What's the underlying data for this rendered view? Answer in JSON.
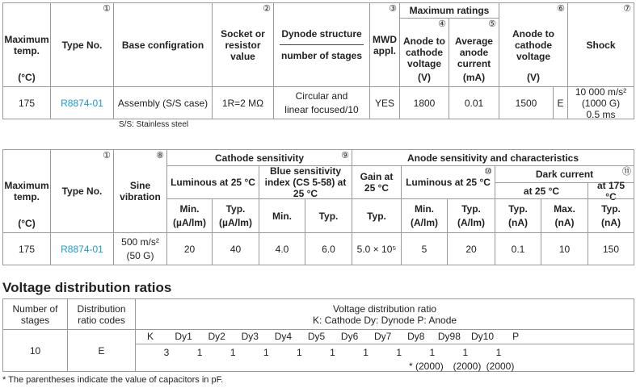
{
  "table1": {
    "max_temp": {
      "label": "Maximum temp.",
      "unit": "(°C)"
    },
    "type_no": {
      "label": "Type No.",
      "note": "①"
    },
    "base": {
      "label": "Base configration"
    },
    "socket": {
      "label": "Socket or resistor value",
      "note": "②"
    },
    "dynode": {
      "label": "Dynode structure",
      "sublabel": "number of stages"
    },
    "mwd": {
      "label": "MWD appl.",
      "note": "③"
    },
    "max_ratings": "Maximum ratings",
    "anode_cathode_voltage": {
      "label": "Anode to cathode voltage",
      "note": "④",
      "unit": "(V)"
    },
    "average_anode_current": {
      "label": "Average anode current",
      "note": "⑤",
      "unit": "(mA)"
    },
    "anode_to_cathode_voltage": {
      "label": "Anode to cathode voltage",
      "note": "⑥",
      "unit": "(V)"
    },
    "shock": {
      "label": "Shock",
      "note": "⑦"
    },
    "row": {
      "max_temp": "175",
      "type_no": "R8874-01",
      "base": "Assembly (S/S case)",
      "socket": "1R=2 MΩ",
      "dynode": [
        "Circular and",
        "linear focused/10"
      ],
      "mwd": "YES",
      "anode_cathode_voltage": "1800",
      "average_anode_current": "0.01",
      "anode_to_cathode_voltage": "1500",
      "electrode": "E",
      "shock": [
        "10 000 m/s²",
        "(1000 G)",
        "0.5 ms"
      ]
    },
    "note": "S/S: Stainless steel"
  },
  "table2": {
    "max_temp": {
      "label": "Maximum temp.",
      "unit": "(°C)"
    },
    "type_no": {
      "label": "Type No.",
      "note": "①"
    },
    "sine": {
      "label": "Sine vibration",
      "note": "⑧"
    },
    "cathode_sensitivity": {
      "label": "Cathode sensitivity",
      "note": "⑨"
    },
    "luminous": "Luminous at 25 °C",
    "luminous_min": {
      "label": "Min.",
      "unit": "(µA/lm)"
    },
    "luminous_typ": {
      "label": "Typ.",
      "unit": "(µA/lm)"
    },
    "blue": "Blue sensitivity index (CS 5-58) at 25 °C",
    "blue_min": "Min.",
    "blue_typ": "Typ.",
    "anode": "Anode sensitivity and characteristics",
    "gain": {
      "label": "Gain at 25 °C",
      "sub": "Typ."
    },
    "anode_luminous": {
      "label": "Luminous at 25 °C",
      "note": "⑩"
    },
    "anode_luminous_min": {
      "label": "Min.",
      "unit": "(A/lm)"
    },
    "anode_luminous_typ": {
      "label": "Typ.",
      "unit": "(A/lm)"
    },
    "dark_current": {
      "label": "Dark current",
      "note": "⑪"
    },
    "dark_25": "at 25 °C",
    "dark_175": "at 175 °C",
    "dark_25_typ": {
      "label": "Typ.",
      "unit": "(nA)"
    },
    "dark_25_max": {
      "label": "Max.",
      "unit": "(nA)"
    },
    "dark_175_typ": {
      "label": "Typ.",
      "unit": "(nA)"
    },
    "row": {
      "max_temp": "175",
      "type_no": "R8874-01",
      "sine": [
        "500 m/s²",
        "(50 G)"
      ],
      "luminous_min": "20",
      "luminous_typ": "40",
      "blue_min": "4.0",
      "blue_typ": "6.0",
      "gain": "5.0 × 10⁵",
      "anode_luminous_min": "5",
      "anode_luminous_typ": "20",
      "dark_25_typ": "0.1",
      "dark_25_max": "10",
      "dark_175_typ": "150"
    }
  },
  "section_title": "Voltage distribution ratios",
  "table3": {
    "stages": "Number of stages",
    "codes": "Distribution ratio codes",
    "ratio": {
      "label": "Voltage distribution ratio",
      "legend": "K: Cathode  Dy: Dynode  P: Anode"
    },
    "electrodes": [
      "K",
      "Dy1",
      "Dy2",
      "Dy3",
      "Dy4",
      "Dy5",
      "Dy6",
      "Dy7",
      "Dy8",
      "Dy98",
      "Dy10",
      "P"
    ],
    "row": {
      "stages": "10",
      "code": "E",
      "ratios": [
        "3",
        "1",
        "1",
        "1",
        "1",
        "1",
        "1",
        "1",
        "1",
        "1",
        "1"
      ]
    },
    "capacitors": [
      "* (2000)",
      "(2000)",
      "(2000)"
    ]
  },
  "footnote": "* The parentheses indicate the value of capacitors in pF."
}
